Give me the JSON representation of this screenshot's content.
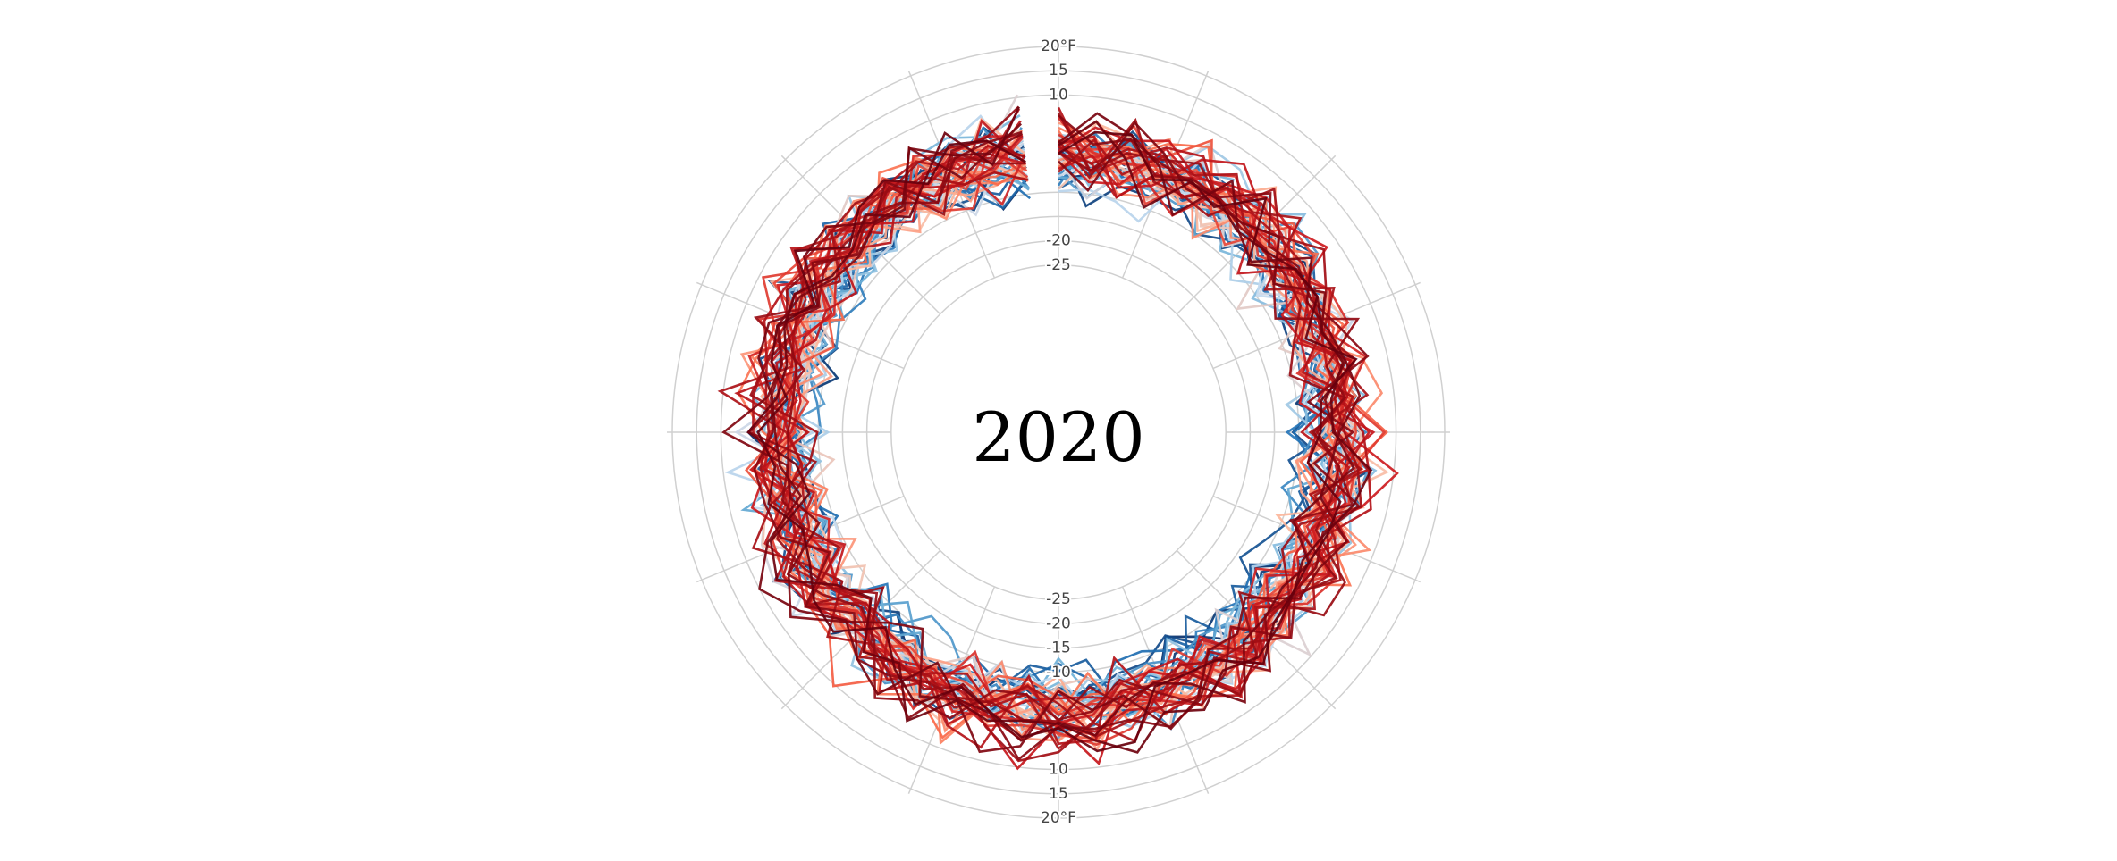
{
  "chart_data": {
    "type": "line",
    "subtype": "radial",
    "center_label": "2020",
    "radial_axis": {
      "range": [
        -30,
        20
      ],
      "unit": "°F",
      "ticks": [
        -25,
        -20,
        -15,
        -10,
        10,
        15,
        20
      ],
      "tick_labels_top": [
        "20°F",
        "15",
        "10",
        "-20",
        "-25"
      ],
      "tick_values_top": [
        20,
        15,
        10,
        -20,
        -25
      ],
      "tick_labels_bottom": [
        "-25",
        "-20",
        "-15",
        "-10",
        "10",
        "15",
        "20°F"
      ],
      "tick_values_bottom": [
        -25,
        -20,
        -15,
        -10,
        10,
        15,
        20
      ]
    },
    "angular_axis": {
      "spokes": 16,
      "grid": true
    },
    "colors": {
      "gradient": [
        "#08306b",
        "#2171b5",
        "#6baed6",
        "#c6dbef",
        "#fcbba1",
        "#fb6a4a",
        "#cb181d",
        "#a50f15",
        "#67000d"
      ],
      "grid": "#d0d0d0"
    },
    "series_summary": {
      "count": 60,
      "points_per_series": 52,
      "mean_value": -2,
      "spread": 7,
      "color_scale": "cold blue to warm red by year"
    }
  }
}
